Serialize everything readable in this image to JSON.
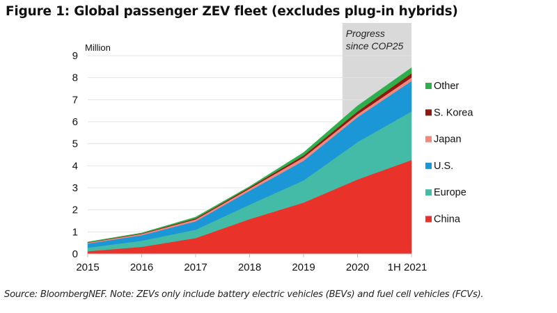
{
  "figure_title": "Figure 1: Global passenger ZEV fleet (excludes plug-in hybrids)",
  "source_note": "Source: BloombergNEF. Note: ZEVs only include battery electric vehicles (BEVs) and fuel cell vehicles (FCVs).",
  "chart_data": {
    "type": "area",
    "stacked": true,
    "title": "Global passenger ZEV fleet (excludes plug-in hybrids)",
    "xlabel": "",
    "ylabel": "Million",
    "categories": [
      "2015",
      "2016",
      "2017",
      "2018",
      "2019",
      "2020",
      "1H 2021"
    ],
    "ylim": [
      0,
      9
    ],
    "yticks": [
      0,
      1,
      2,
      3,
      4,
      5,
      6,
      7,
      8,
      9
    ],
    "grid": true,
    "legend_position": "right",
    "series": [
      {
        "name": "China",
        "color": "#e8322a",
        "values": [
          0.12,
          0.32,
          0.72,
          1.58,
          2.33,
          3.38,
          4.26
        ]
      },
      {
        "name": "Europe",
        "color": "#44bba6",
        "values": [
          0.16,
          0.28,
          0.38,
          0.66,
          1.01,
          1.7,
          2.21
        ]
      },
      {
        "name": "U.S.",
        "color": "#1b97d8",
        "values": [
          0.19,
          0.25,
          0.38,
          0.63,
          0.89,
          1.13,
          1.38
        ]
      },
      {
        "name": "Japan",
        "color": "#f08a80",
        "values": [
          0.04,
          0.06,
          0.09,
          0.1,
          0.15,
          0.13,
          0.16
        ]
      },
      {
        "name": "S. Korea",
        "color": "#8e1a12",
        "values": [
          0.01,
          0.02,
          0.04,
          0.05,
          0.09,
          0.13,
          0.19
        ]
      },
      {
        "name": "Other",
        "color": "#2fae4c",
        "values": [
          0.02,
          0.02,
          0.06,
          0.04,
          0.13,
          0.25,
          0.25
        ]
      }
    ],
    "legend_order": [
      "Other",
      "S. Korea",
      "Japan",
      "U.S.",
      "Europe",
      "China"
    ],
    "annotations": [
      {
        "type": "shaded_band",
        "from_category": "2019",
        "from_fraction": 0.72,
        "to_category": "1H 2021",
        "color": "#d9d9d9",
        "label_lines": [
          "Progress",
          "since COP25"
        ]
      }
    ]
  }
}
